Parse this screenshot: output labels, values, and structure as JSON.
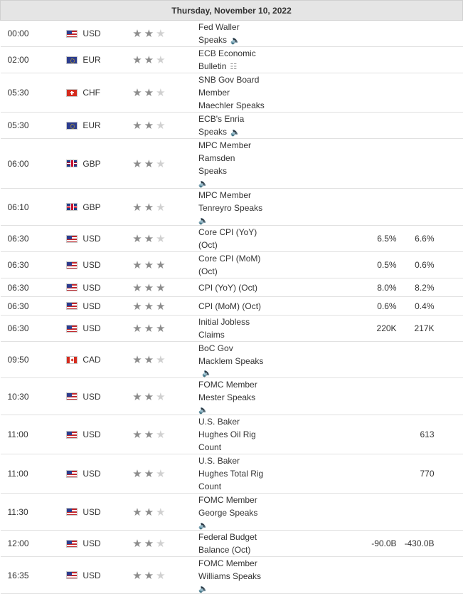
{
  "date_header": "Thursday, November 10, 2022",
  "colors": {
    "header_bg": "#e5e5e5",
    "star_active": "#8c8c8c",
    "star_inactive": "#d0d0d0"
  },
  "events": [
    {
      "time": "00:00",
      "flag": "us",
      "currency": "USD",
      "importance": 2,
      "event": "Fed Waller Speaks",
      "icon": "speaker-icon",
      "actual": "",
      "forecast": "",
      "previous": ""
    },
    {
      "time": "02:00",
      "flag": "eu",
      "currency": "EUR",
      "importance": 2,
      "event": "ECB Economic Bulletin",
      "icon": "document-icon",
      "actual": "",
      "forecast": "",
      "previous": ""
    },
    {
      "time": "05:30",
      "flag": "ch",
      "currency": "CHF",
      "importance": 2,
      "event": "SNB Gov Board Member Maechler Speaks",
      "icon": "",
      "actual": "",
      "forecast": "",
      "previous": ""
    },
    {
      "time": "05:30",
      "flag": "eu",
      "currency": "EUR",
      "importance": 2,
      "event": "ECB's Enria Speaks",
      "icon": "speaker-icon",
      "actual": "",
      "forecast": "",
      "previous": ""
    },
    {
      "time": "06:00",
      "flag": "gb",
      "currency": "GBP",
      "importance": 2,
      "event": "MPC Member Ramsden Speaks",
      "icon": "speaker-icon",
      "icon_below": true,
      "actual": "",
      "forecast": "",
      "previous": ""
    },
    {
      "time": "06:10",
      "flag": "gb",
      "currency": "GBP",
      "importance": 2,
      "event": "MPC Member Tenreyro Speaks",
      "icon": "speaker-icon",
      "icon_below": true,
      "actual": "",
      "forecast": "",
      "previous": ""
    },
    {
      "time": "06:30",
      "flag": "us",
      "currency": "USD",
      "importance": 2,
      "event": "Core CPI (YoY) (Oct)",
      "icon": "",
      "actual": "",
      "forecast": "6.5%",
      "previous": "6.6%"
    },
    {
      "time": "06:30",
      "flag": "us",
      "currency": "USD",
      "importance": 3,
      "event": "Core CPI (MoM) (Oct)",
      "icon": "",
      "actual": "",
      "forecast": "0.5%",
      "previous": "0.6%"
    },
    {
      "time": "06:30",
      "flag": "us",
      "currency": "USD",
      "importance": 3,
      "event": "CPI (YoY) (Oct)",
      "icon": "",
      "actual": "",
      "forecast": "8.0%",
      "previous": "8.2%"
    },
    {
      "time": "06:30",
      "flag": "us",
      "currency": "USD",
      "importance": 3,
      "event": "CPI (MoM) (Oct)",
      "icon": "",
      "actual": "",
      "forecast": "0.6%",
      "previous": "0.4%"
    },
    {
      "time": "06:30",
      "flag": "us",
      "currency": "USD",
      "importance": 3,
      "event": "Initial Jobless Claims",
      "icon": "",
      "actual": "",
      "forecast": "220K",
      "previous": "217K"
    },
    {
      "time": "09:50",
      "flag": "ca",
      "currency": "CAD",
      "importance": 2,
      "event": "BoC Gov Macklem Speaks",
      "icon": "speaker-icon",
      "actual": "",
      "forecast": "",
      "previous": ""
    },
    {
      "time": "10:30",
      "flag": "us",
      "currency": "USD",
      "importance": 2,
      "event": "FOMC Member Mester Speaks",
      "icon": "speaker-icon",
      "icon_below": true,
      "actual": "",
      "forecast": "",
      "previous": ""
    },
    {
      "time": "11:00",
      "flag": "us",
      "currency": "USD",
      "importance": 2,
      "event": "U.S. Baker Hughes Oil Rig Count",
      "icon": "",
      "actual": "",
      "forecast": "",
      "previous": "613"
    },
    {
      "time": "11:00",
      "flag": "us",
      "currency": "USD",
      "importance": 2,
      "event": "U.S. Baker Hughes Total Rig Count",
      "icon": "",
      "actual": "",
      "forecast": "",
      "previous": "770"
    },
    {
      "time": "11:30",
      "flag": "us",
      "currency": "USD",
      "importance": 2,
      "event": "FOMC Member George Speaks",
      "icon": "speaker-icon",
      "icon_below": true,
      "actual": "",
      "forecast": "",
      "previous": ""
    },
    {
      "time": "12:00",
      "flag": "us",
      "currency": "USD",
      "importance": 2,
      "event": "Federal Budget Balance (Oct)",
      "icon": "",
      "actual": "",
      "forecast": "-90.0B",
      "previous": "-430.0B"
    },
    {
      "time": "16:35",
      "flag": "us",
      "currency": "USD",
      "importance": 2,
      "event": "FOMC Member Williams Speaks",
      "icon": "speaker-icon",
      "icon_below": true,
      "actual": "",
      "forecast": "",
      "previous": ""
    }
  ]
}
